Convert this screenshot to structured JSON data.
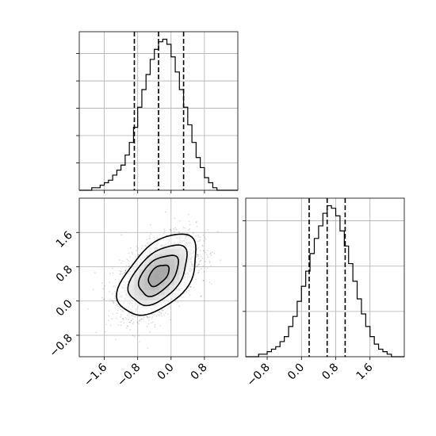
{
  "chart_data": [
    {
      "type": "histogram",
      "panel": "top-left marginal (parameter 1)",
      "bins": [
        -2.15,
        -2.05,
        -1.95,
        -1.85,
        -1.75,
        -1.65,
        -1.55,
        -1.45,
        -1.35,
        -1.25,
        -1.15,
        -1.05,
        -0.95,
        -0.85,
        -0.75,
        -0.65,
        -0.55,
        -0.45,
        -0.35,
        -0.25,
        -0.15,
        -0.05,
        0.05,
        0.15,
        0.25,
        0.35,
        0.45,
        0.55,
        0.65,
        0.75,
        0.85,
        0.95,
        1.05,
        1.15,
        1.25,
        1.35,
        1.45,
        1.55
      ],
      "counts": [
        0,
        0,
        0,
        1,
        1,
        2,
        3,
        4,
        6,
        8,
        10,
        14,
        19,
        25,
        33,
        40,
        46,
        52,
        56,
        59,
        60,
        58,
        53,
        47,
        40,
        33,
        26,
        19,
        13,
        9,
        5,
        3,
        1,
        0,
        0,
        0,
        0,
        0
      ],
      "quantiles": [
        -0.88,
        -0.3,
        0.3
      ],
      "xlim": [
        -2.2,
        1.6
      ],
      "grid": true,
      "tick_labels_shown": false
    },
    {
      "type": "histogram2d",
      "panel": "bottom-left joint (parameter 1 vs parameter 2)",
      "x_ticks": [
        "−1.6",
        "−0.8",
        "0.0",
        "0.8"
      ],
      "y_ticks": [
        "−0.8",
        "0.0",
        "0.8",
        "1.6"
      ],
      "xlim": [
        -2.2,
        1.6
      ],
      "ylim": [
        -1.3,
        2.4
      ],
      "center": [
        -0.3,
        0.6
      ],
      "correlation": 0.5,
      "grid": true,
      "contour_levels": 4
    },
    {
      "type": "histogram",
      "panel": "bottom-right marginal (parameter 2)",
      "bins": [
        -1.25,
        -1.15,
        -1.05,
        -0.95,
        -0.85,
        -0.75,
        -0.65,
        -0.55,
        -0.45,
        -0.35,
        -0.25,
        -0.15,
        -0.05,
        0.05,
        0.15,
        0.25,
        0.35,
        0.45,
        0.55,
        0.65,
        0.75,
        0.85,
        0.95,
        1.05,
        1.15,
        1.25,
        1.35,
        1.45,
        1.55,
        1.65,
        1.75,
        1.85,
        1.95,
        2.05,
        2.15,
        2.25,
        2.35
      ],
      "counts": [
        0,
        0,
        0,
        1,
        1,
        2,
        3,
        4,
        6,
        8,
        12,
        16,
        22,
        28,
        34,
        41,
        47,
        52,
        57,
        60,
        59,
        56,
        50,
        44,
        37,
        30,
        23,
        17,
        12,
        8,
        5,
        3,
        2,
        1,
        0,
        0,
        0
      ],
      "quantiles": [
        0.18,
        0.6,
        1.02
      ],
      "xlim": [
        -1.3,
        2.4
      ],
      "x_ticks": [
        "−0.8",
        "0.0",
        "0.8",
        "1.6"
      ],
      "grid": true
    }
  ]
}
